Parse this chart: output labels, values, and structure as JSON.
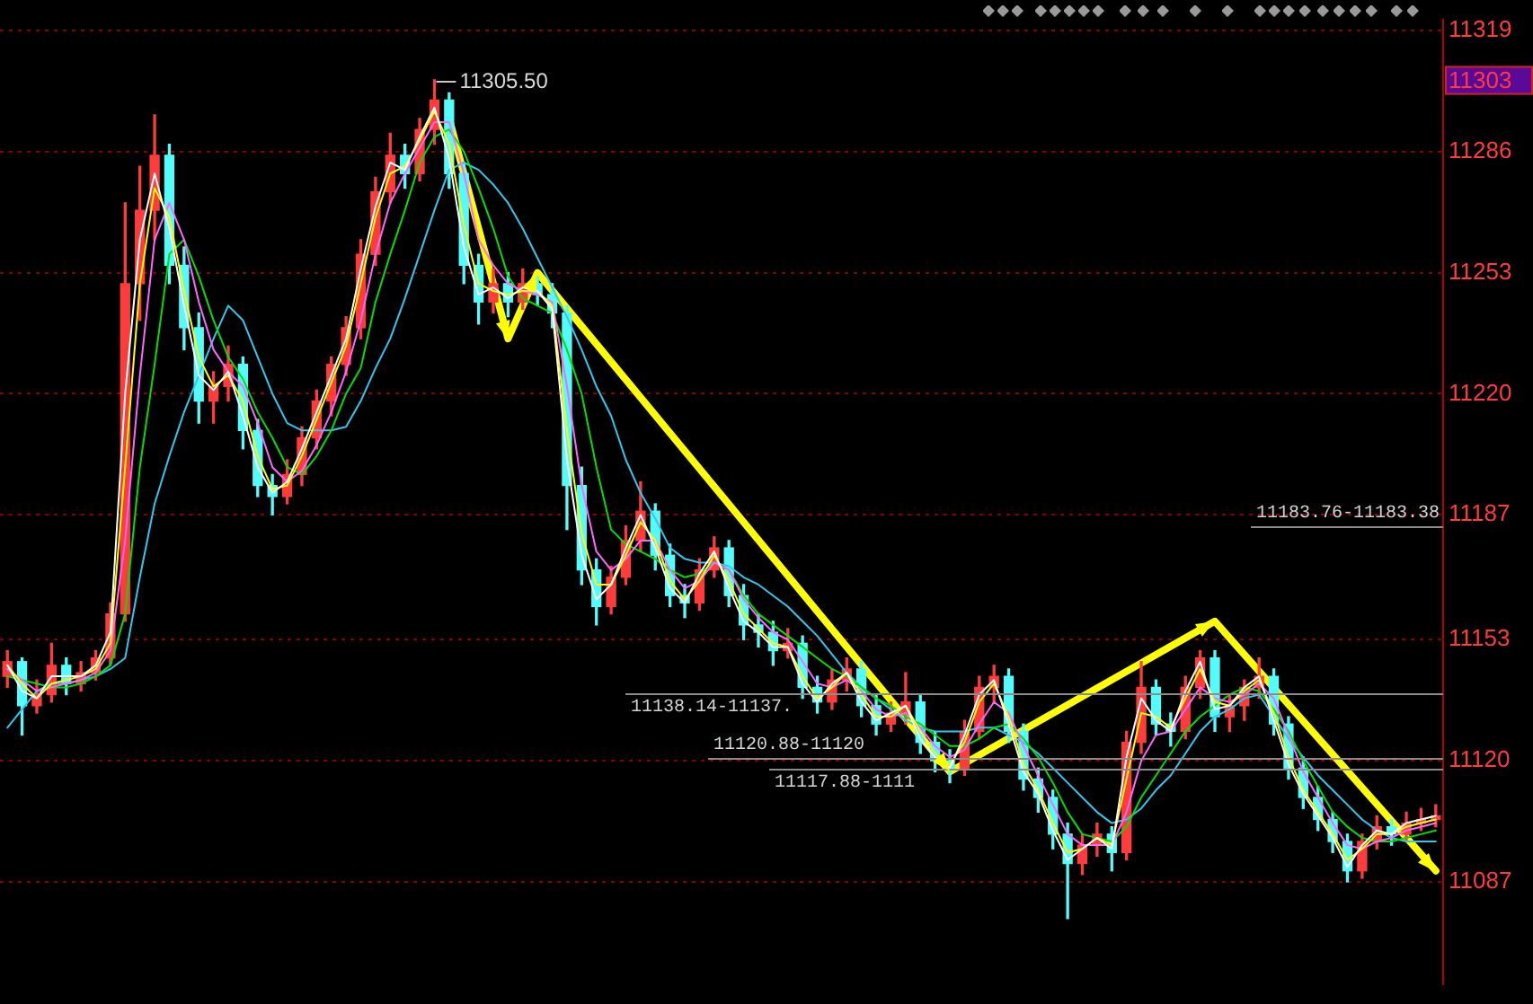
{
  "chart_data": {
    "type": "candlestick",
    "categories": [
      null,
      null,
      null,
      null,
      null,
      null,
      null,
      null,
      null,
      null,
      null,
      null,
      null,
      null,
      null,
      null,
      null,
      null,
      null,
      null,
      null,
      null,
      null,
      null,
      null,
      null,
      null,
      null,
      null,
      null,
      null,
      null,
      null,
      null,
      null,
      null,
      null,
      null,
      null,
      null,
      null,
      null,
      null,
      null,
      null,
      null,
      null,
      null,
      null,
      null,
      null,
      null,
      null,
      null,
      null,
      null,
      null,
      null,
      null,
      null,
      null,
      null,
      null,
      null,
      null,
      null,
      null,
      null,
      null,
      null,
      null,
      null,
      null,
      null,
      null,
      null,
      null,
      null,
      null,
      null,
      null,
      null,
      null,
      null,
      null,
      null,
      null,
      null,
      null,
      null,
      null,
      null,
      null,
      null,
      null,
      null,
      null,
      null
    ],
    "ohlc": [
      [
        11143,
        11150,
        11140,
        11147
      ],
      [
        11147,
        11148,
        11127,
        11135
      ],
      [
        11135,
        11142,
        11133,
        11138
      ],
      [
        11138,
        11152,
        11136,
        11146
      ],
      [
        11146,
        11148,
        11138,
        11141
      ],
      [
        11141,
        11147,
        11139,
        11144
      ],
      [
        11144,
        11150,
        11142,
        11148
      ],
      [
        11148,
        11163,
        11146,
        11160
      ],
      [
        11160,
        11272,
        11158,
        11250
      ],
      [
        11250,
        11282,
        11240,
        11270
      ],
      [
        11270,
        11296,
        11262,
        11285
      ],
      [
        11285,
        11288,
        11250,
        11255
      ],
      [
        11255,
        11260,
        11232,
        11238
      ],
      [
        11238,
        11242,
        11212,
        11218
      ],
      [
        11218,
        11226,
        11212,
        11222
      ],
      [
        11222,
        11233,
        11218,
        11228
      ],
      [
        11228,
        11230,
        11205,
        11210
      ],
      [
        11210,
        11213,
        11192,
        11195
      ],
      [
        11195,
        11198,
        11187,
        11192
      ],
      [
        11192,
        11202,
        11190,
        11198
      ],
      [
        11198,
        11211,
        11195,
        11208
      ],
      [
        11208,
        11221,
        11205,
        11218
      ],
      [
        11218,
        11230,
        11214,
        11228
      ],
      [
        11228,
        11241,
        11225,
        11238
      ],
      [
        11238,
        11262,
        11235,
        11258
      ],
      [
        11258,
        11279,
        11255,
        11275
      ],
      [
        11275,
        11291,
        11272,
        11285
      ],
      [
        11285,
        11288,
        11276,
        11280
      ],
      [
        11280,
        11295,
        11278,
        11292
      ],
      [
        11292,
        11305.5,
        11288,
        11300
      ],
      [
        11300,
        11302,
        11276,
        11280
      ],
      [
        11280,
        11283,
        11250,
        11255
      ],
      [
        11255,
        11258,
        11239,
        11245
      ],
      [
        11245,
        11254,
        11242,
        11250
      ],
      [
        11250,
        11253,
        11241,
        11245
      ],
      [
        11245,
        11254,
        11243,
        11250
      ],
      [
        11250,
        11252,
        11244,
        11247
      ],
      [
        11247,
        11250,
        11238,
        11242
      ],
      [
        11242,
        11244,
        11183,
        11195
      ],
      [
        11195,
        11200,
        11168,
        11172
      ],
      [
        11172,
        11175,
        11157,
        11162
      ],
      [
        11162,
        11173,
        11160,
        11170
      ],
      [
        11170,
        11184,
        11168,
        11180
      ],
      [
        11180,
        11196,
        11177,
        11188
      ],
      [
        11188,
        11190,
        11172,
        11176
      ],
      [
        11176,
        11179,
        11162,
        11165
      ],
      [
        11165,
        11168,
        11159,
        11163
      ],
      [
        11163,
        11175,
        11161,
        11172
      ],
      [
        11172,
        11181,
        11170,
        11178
      ],
      [
        11178,
        11180,
        11162,
        11165
      ],
      [
        11165,
        11168,
        11153,
        11157
      ],
      [
        11157,
        11160,
        11151,
        11155
      ],
      [
        11155,
        11158,
        11146,
        11150
      ],
      [
        11150,
        11156,
        11148,
        11152
      ],
      [
        11152,
        11154,
        11137,
        11140
      ],
      [
        11140,
        11143,
        11133,
        11136
      ],
      [
        11136,
        11145,
        11134,
        11142
      ],
      [
        11142,
        11148,
        11139,
        11145
      ],
      [
        11145,
        11147,
        11132,
        11135
      ],
      [
        11135,
        11138,
        11127,
        11130
      ],
      [
        11130,
        11136,
        11128,
        11133
      ],
      [
        11133,
        11144,
        11130,
        11136
      ],
      [
        11136,
        11138,
        11122,
        11125
      ],
      [
        11125,
        11128,
        11117,
        11120
      ],
      [
        11120,
        11123,
        11114,
        11118
      ],
      [
        11118,
        11131,
        11116,
        11128
      ],
      [
        11128,
        11143,
        11126,
        11140
      ],
      [
        11140,
        11146,
        11136,
        11143
      ],
      [
        11143,
        11145,
        11125,
        11128
      ],
      [
        11128,
        11130,
        11112,
        11115
      ],
      [
        11115,
        11118,
        11106,
        11110
      ],
      [
        11110,
        11112,
        11096,
        11100
      ],
      [
        11100,
        11103,
        11077,
        11092
      ],
      [
        11092,
        11100,
        11089,
        11097
      ],
      [
        11097,
        11103,
        11094,
        11100
      ],
      [
        11100,
        11102,
        11090,
        11095
      ],
      [
        11095,
        11128,
        11093,
        11125
      ],
      [
        11125,
        11147,
        11122,
        11140
      ],
      [
        11140,
        11142,
        11127,
        11130
      ],
      [
        11130,
        11133,
        11124,
        11128
      ],
      [
        11128,
        11143,
        11126,
        11140
      ],
      [
        11140,
        11150,
        11137,
        11148
      ],
      [
        11148,
        11150,
        11128,
        11132
      ],
      [
        11132,
        11138,
        11128,
        11135
      ],
      [
        11135,
        11142,
        11131,
        11140
      ],
      [
        11140,
        11148,
        11137,
        11143
      ],
      [
        11143,
        11145,
        11127,
        11130
      ],
      [
        11130,
        11132,
        11115,
        11118
      ],
      [
        11118,
        11121,
        11107,
        11110
      ],
      [
        11110,
        11113,
        11101,
        11104
      ],
      [
        11104,
        11106,
        11095,
        11098
      ],
      [
        11098,
        11100,
        11087,
        11090
      ],
      [
        11090,
        11100,
        11088,
        11098
      ],
      [
        11098,
        11105,
        11096,
        11102
      ],
      [
        11102,
        11104,
        11097,
        11100
      ],
      [
        11100,
        11106,
        11098,
        11103
      ],
      [
        11103,
        11107,
        11101,
        11104
      ],
      [
        11104,
        11108,
        11102,
        11105
      ]
    ],
    "colors": [
      "#ff3c3c",
      "#54fcfc",
      "#ff3c3c",
      "#ff3c3c",
      "#54fcfc",
      "#ff3c3c",
      "#ff3c3c",
      "#ff3c3c",
      "#ff3c3c",
      "#ff3c3c",
      "#ff3c3c",
      "#54fcfc",
      "#54fcfc",
      "#54fcfc",
      "#ff3c3c",
      "#ff3c3c",
      "#54fcfc",
      "#54fcfc",
      "#54fcfc",
      "#ff3c3c",
      "#ff3c3c",
      "#ff3c3c",
      "#ff3c3c",
      "#ff3c3c",
      "#ff3c3c",
      "#ff3c3c",
      "#ff3c3c",
      "#54fcfc",
      "#ff3c3c",
      "#ff3c3c",
      "#54fcfc",
      "#54fcfc",
      "#54fcfc",
      "#ff3c3c",
      "#54fcfc",
      "#ff3c3c",
      "#54fcfc",
      "#54fcfc",
      "#54fcfc",
      "#54fcfc",
      "#54fcfc",
      "#ff3c3c",
      "#ff3c3c",
      "#ff3c3c",
      "#54fcfc",
      "#54fcfc",
      "#54fcfc",
      "#ff3c3c",
      "#ff3c3c",
      "#54fcfc",
      "#54fcfc",
      "#54fcfc",
      "#54fcfc",
      "#ff3c3c",
      "#54fcfc",
      "#54fcfc",
      "#ff3c3c",
      "#ff3c3c",
      "#54fcfc",
      "#54fcfc",
      "#ff3c3c",
      "#ff3c3c",
      "#54fcfc",
      "#54fcfc",
      "#54fcfc",
      "#ff3c3c",
      "#ff3c3c",
      "#ff3c3c",
      "#54fcfc",
      "#54fcfc",
      "#54fcfc",
      "#54fcfc",
      "#54fcfc",
      "#ff3c3c",
      "#ff3c3c",
      "#54fcfc",
      "#ff3c3c",
      "#ff3c3c",
      "#54fcfc",
      "#54fcfc",
      "#ff3c3c",
      "#ff3c3c",
      "#54fcfc",
      "#ff3c3c",
      "#ff3c3c",
      "#ff3c3c",
      "#54fcfc",
      "#54fcfc",
      "#54fcfc",
      "#54fcfc",
      "#54fcfc",
      "#54fcfc",
      "#ff3c3c",
      "#ff3c3c",
      "#54fcfc",
      "#ff3c3c",
      "#ff3c3c",
      "#ff3c3c"
    ],
    "series": [
      {
        "type": "line",
        "color": "#ffffff",
        "values": [
          11146,
          11139,
          11137,
          11143,
          11143,
          11143,
          11146,
          11155,
          11220,
          11262,
          11280,
          11265,
          11244,
          11225,
          11221,
          11226,
          11214,
          11200,
          11193,
          11196,
          11205,
          11215,
          11225,
          11235,
          11254,
          11271,
          11283,
          11281,
          11290,
          11298,
          11284,
          11260,
          11247,
          11249,
          11246,
          11249,
          11248,
          11243,
          11202,
          11176,
          11164,
          11168,
          11178,
          11187,
          11178,
          11167,
          11163,
          11171,
          11177,
          11167,
          11158,
          11155,
          11151,
          11151,
          11141,
          11136,
          11141,
          11144,
          11136,
          11131,
          11133,
          11135,
          11126,
          11121,
          11118,
          11127,
          11138,
          11142,
          11130,
          11117,
          11111,
          11101,
          11093,
          11096,
          11099,
          11096,
          11121,
          11137,
          11131,
          11128,
          11139,
          11147,
          11134,
          11135,
          11140,
          11143,
          11131,
          11119,
          11111,
          11105,
          11099,
          11091,
          11097,
          11101,
          11100,
          11103,
          11104,
          11105
        ]
      },
      {
        "type": "line",
        "color": "#ffff00",
        "values": [
          11146,
          11141,
          11137,
          11141,
          11142,
          11143,
          11145,
          11152,
          11200,
          11250,
          11276,
          11268,
          11248,
          11230,
          11222,
          11225,
          11218,
          11203,
          11194,
          11195,
          11203,
          11213,
          11223,
          11233,
          11250,
          11268,
          11280,
          11282,
          11289,
          11297,
          11288,
          11266,
          11250,
          11248,
          11247,
          11248,
          11248,
          11244,
          11210,
          11182,
          11168,
          11168,
          11176,
          11185,
          11180,
          11169,
          11164,
          11169,
          11176,
          11169,
          11160,
          11156,
          11152,
          11151,
          11143,
          11137,
          11140,
          11144,
          11138,
          11132,
          11132,
          11135,
          11128,
          11122,
          11119,
          11125,
          11136,
          11141,
          11132,
          11119,
          11112,
          11103,
          11095,
          11096,
          11099,
          11097,
          11115,
          11133,
          11132,
          11129,
          11137,
          11145,
          11136,
          11135,
          11139,
          11142,
          11133,
          11121,
          11112,
          11106,
          11100,
          11093,
          11096,
          11100,
          11100,
          11102,
          11103,
          11104
        ]
      },
      {
        "type": "line",
        "color": "#ff66ff",
        "values": [
          11145,
          11142,
          11139,
          11140,
          11141,
          11142,
          11144,
          11150,
          11180,
          11225,
          11262,
          11272,
          11262,
          11245,
          11232,
          11226,
          11222,
          11212,
          11200,
          11196,
          11199,
          11206,
          11215,
          11226,
          11240,
          11258,
          11272,
          11280,
          11287,
          11294,
          11294,
          11280,
          11262,
          11255,
          11250,
          11248,
          11247,
          11245,
          11222,
          11195,
          11177,
          11172,
          11175,
          11180,
          11180,
          11172,
          11167,
          11169,
          11174,
          11172,
          11164,
          11159,
          11155,
          11153,
          11147,
          11141,
          11140,
          11142,
          11139,
          11134,
          11132,
          11133,
          11129,
          11124,
          11121,
          11123,
          11130,
          11136,
          11133,
          11124,
          11116,
          11108,
          11100,
          11097,
          11097,
          11097,
          11106,
          11120,
          11127,
          11128,
          11134,
          11140,
          11137,
          11136,
          11138,
          11141,
          11137,
          11127,
          11117,
          11110,
          11103,
          11097,
          11096,
          11098,
          11099,
          11101,
          11102,
          11103
        ]
      },
      {
        "type": "line",
        "color": "#00e000",
        "values": [
          11143,
          11142,
          11141,
          11140,
          11140,
          11141,
          11143,
          11146,
          11160,
          11200,
          11228,
          11258,
          11262,
          11252,
          11240,
          11230,
          11224,
          11215,
          11208,
          11200,
          11198,
          11203,
          11210,
          11220,
          11227,
          11245,
          11258,
          11270,
          11283,
          11290,
          11292,
          11286,
          11276,
          11265,
          11252,
          11246,
          11244,
          11242,
          11232,
          11220,
          11200,
          11183,
          11179,
          11177,
          11175,
          11172,
          11170,
          11171,
          11174,
          11172,
          11165,
          11160,
          11157,
          11154,
          11151,
          11148,
          11145,
          11143,
          11140,
          11137,
          11135,
          11132,
          11130,
          11127,
          11124,
          11124,
          11126,
          11129,
          11130,
          11126,
          11121,
          11114,
          11106,
          11100,
          11099,
          11098,
          11102,
          11110,
          11116,
          11122,
          11128,
          11132,
          11135,
          11138,
          11140,
          11139,
          11134,
          11128,
          11120,
          11113,
          11106,
          11102,
          11099,
          11098,
          11098,
          11099,
          11100,
          11101
        ]
      },
      {
        "type": "line",
        "color": "#30c8f0",
        "values": [
          11129,
          11134,
          11139,
          11141,
          11141,
          11142,
          11143,
          11145,
          11148,
          11170,
          11190,
          11203,
          11215,
          11225,
          11235,
          11244,
          11240,
          11230,
          11220,
          11212,
          11210,
          11210,
          11210,
          11211,
          11218,
          11227,
          11235,
          11246,
          11258,
          11270,
          11281,
          11283,
          11281,
          11277,
          11272,
          11265,
          11257,
          11249,
          11241,
          11232,
          11222,
          11214,
          11202,
          11193,
          11186,
          11178,
          11175,
          11174,
          11174,
          11173,
          11170,
          11168,
          11165,
          11162,
          11158,
          11154,
          11149,
          11144,
          11140,
          11137,
          11134,
          11131,
          11129,
          11128,
          11128,
          11128,
          11129,
          11129,
          11127,
          11125,
          11122,
          11118,
          11114,
          11110,
          11106,
          11103,
          11104,
          11107,
          11112,
          11116,
          11122,
          11128,
          11132,
          11134,
          11137,
          11138,
          11132,
          11126,
          11121,
          11116,
          11112,
          11108,
          11104,
          11101,
          11099,
          11098,
          11098,
          11098
        ]
      },
      {
        "type": "line",
        "color": "#ffff00",
        "values": [
          null,
          null,
          null,
          null,
          null,
          null,
          null,
          null,
          null,
          null,
          null,
          null,
          null,
          null,
          null,
          null,
          null,
          null,
          null,
          null,
          null,
          null,
          null,
          null,
          null,
          null,
          null,
          null,
          null,
          null,
          11295,
          null,
          null,
          null,
          11235,
          null,
          11253,
          null,
          null,
          null,
          null,
          null,
          null,
          null,
          null,
          null,
          null,
          null,
          null,
          null,
          null,
          null,
          null,
          null,
          null,
          null,
          null,
          null,
          null,
          null,
          null,
          null,
          null,
          null,
          11117,
          null,
          null,
          null,
          null,
          null,
          null,
          null,
          null,
          null,
          null,
          null,
          null,
          null,
          null,
          null,
          null,
          null,
          11158,
          null,
          null,
          null,
          null,
          null,
          null,
          null,
          null,
          null,
          null,
          null,
          null,
          null,
          null,
          11090
        ]
      }
    ],
    "ylim": [
      11059,
      11322
    ],
    "yticks": [
      11087,
      11120,
      11153,
      11187,
      11220,
      11253,
      11286,
      11319
    ],
    "grid": "y",
    "tick_labels": "y",
    "legend": false,
    "marker": "none",
    "ref_lines": [
      {
        "axis": "y",
        "value": 11183.76,
        "label": "11183.76-11183.38",
        "color": "#8c8c8c"
      },
      {
        "axis": "y",
        "value": 11138.14,
        "label": "11138.14-11137.",
        "color": "#8c8c8c"
      },
      {
        "axis": "y",
        "value": 11120.88,
        "label": "11120.88-11120",
        "color": "#8c8c8c"
      },
      {
        "axis": "y",
        "value": 11117.88,
        "label": "11117.88-1111",
        "color": "#8c8c8c"
      }
    ],
    "annotations": [
      "11305.50",
      "11303"
    ]
  }
}
